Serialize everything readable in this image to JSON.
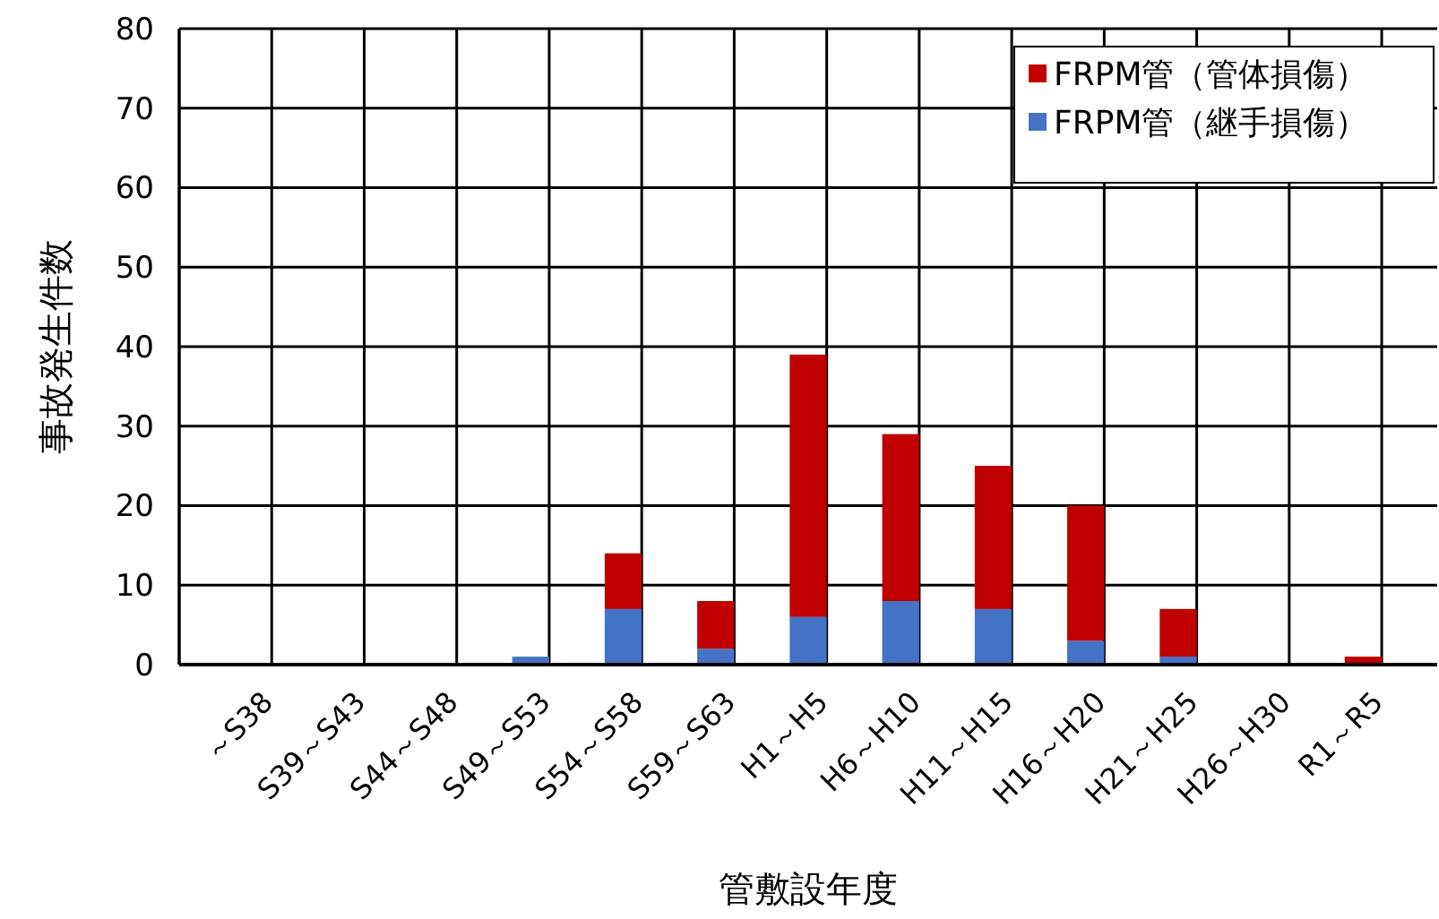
{
  "chart_data": {
    "type": "bar",
    "stacked": true,
    "xlabel": "管敷設年度",
    "ylabel": "事故発生件数",
    "categories": [
      "～S38",
      "S39～S43",
      "S44～S48",
      "S49～S53",
      "S54～S58",
      "S59～S63",
      "H1～H5",
      "H6～H10",
      "H11～H15",
      "H16～H20",
      "H21～H25",
      "H26～H30",
      "R1～R5"
    ],
    "series": [
      {
        "name": "FRPM管（継手損傷）",
        "color": "#4472c4",
        "values": [
          0,
          0,
          0,
          1,
          7,
          2,
          6,
          8,
          7,
          3,
          1,
          0,
          0
        ]
      },
      {
        "name": "FRPM管（管体損傷）",
        "color": "#c00000",
        "values": [
          0,
          0,
          0,
          0,
          7,
          6,
          33,
          21,
          18,
          17,
          6,
          0,
          1
        ]
      }
    ],
    "ylim": [
      0,
      80
    ],
    "yticks": [
      0,
      10,
      20,
      30,
      40,
      50,
      60,
      70,
      80
    ],
    "grid": true,
    "legend": "top right"
  }
}
